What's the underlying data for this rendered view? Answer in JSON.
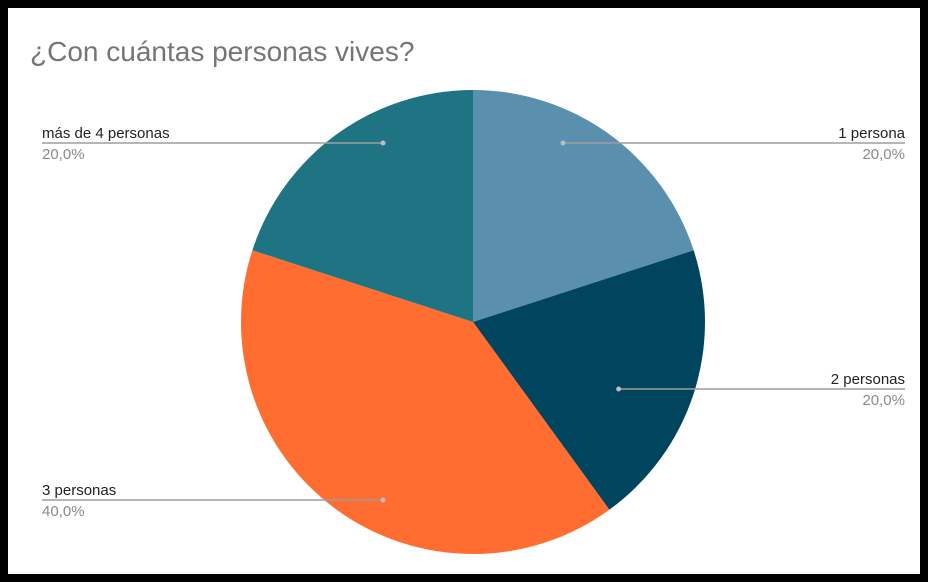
{
  "chart_data": {
    "type": "pie",
    "title": "¿Con cuántas personas vives?",
    "slices": [
      {
        "label": "1 persona",
        "value": 20,
        "percent_label": "20,0%",
        "color": "#5A8FAD"
      },
      {
        "label": "2 personas",
        "value": 20,
        "percent_label": "20,0%",
        "color": "#00445E"
      },
      {
        "label": "3 personas",
        "value": 40,
        "percent_label": "40,0%",
        "color": "#FF6E30"
      },
      {
        "label": "más de 4 personas",
        "value": 20,
        "percent_label": "20,0%",
        "color": "#1F7484"
      }
    ],
    "start_angle_deg": 0,
    "direction": "clockwise",
    "legend": "none",
    "label_style": "leader-lines"
  }
}
